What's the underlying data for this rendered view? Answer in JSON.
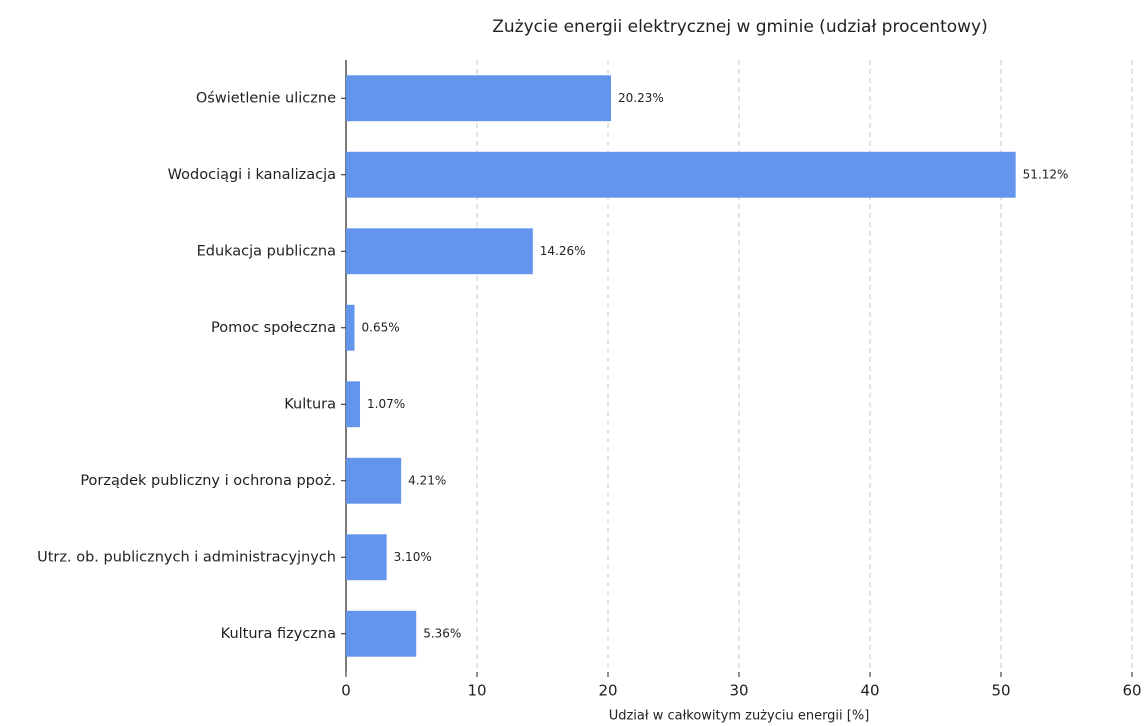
{
  "chart_data": {
    "type": "barh",
    "title": "Zużycie energii elektrycznej w gminie (udział procentowy)",
    "xlabel": "Udział w całkowitym zużyciu energii [%]",
    "categories": [
      "Oświetlenie uliczne",
      "Wodociągi i kanalizacja",
      "Edukacja publiczna",
      "Pomoc społeczna",
      "Kultura",
      "Porządek publiczny i ochrona ppoż.",
      "Utrz. ob. publicznych i administracyjnych",
      "Kultura fizyczna"
    ],
    "values": [
      20.23,
      51.12,
      14.26,
      0.65,
      1.07,
      4.21,
      3.1,
      5.36
    ],
    "value_labels": [
      "20.23%",
      "51.12%",
      "14.26%",
      "0.65%",
      "1.07%",
      "4.21%",
      "3.10%",
      "5.36%"
    ],
    "color": "#6495ed",
    "xlim": [
      0,
      60
    ],
    "xticks": [
      0,
      10,
      20,
      30,
      40,
      50,
      60
    ],
    "grid": true
  }
}
